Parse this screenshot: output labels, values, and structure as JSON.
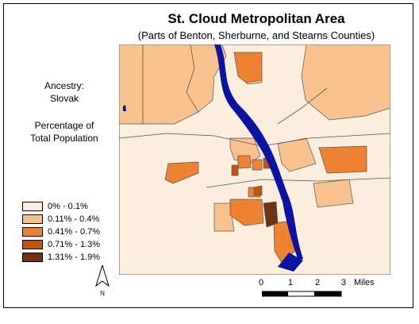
{
  "map": {
    "title": "St. Cloud Metropolitan Area",
    "subtitle": "(Parts of Benton, Sherburne, and Stearns Counties)",
    "variable_line1": "Ancestry:",
    "variable_line2": "Slovak",
    "measure_line1": "Percentage of",
    "measure_line2": "Total Population",
    "water_color": "#0a14a0",
    "legend": [
      {
        "label": "0% - 0.1%",
        "color": "#fbeedd"
      },
      {
        "label": "0.11% - 0.4%",
        "color": "#f7c28d"
      },
      {
        "label": "0.41% - 0.7%",
        "color": "#ee8232"
      },
      {
        "label": "0.71% - 1.3%",
        "color": "#c2560f"
      },
      {
        "label": "1.31% - 1.9%",
        "color": "#6e3310"
      }
    ],
    "north_label": "N",
    "scale": {
      "ticks": [
        "0",
        "1",
        "2",
        "3"
      ],
      "unit": "Miles"
    }
  }
}
